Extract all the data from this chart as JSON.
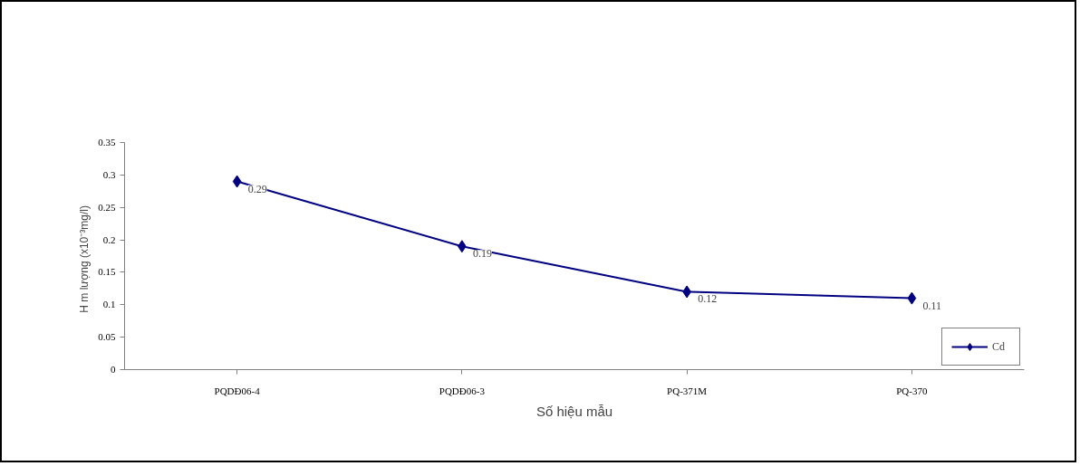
{
  "chart_data": {
    "type": "line",
    "xlabel": "Số hiệu mẫu",
    "ylabel": "H   m lượng (x10⁻³mg/l)",
    "categories": [
      "PQDĐ06-4",
      "PQDĐ06-3",
      "PQ-371M",
      "PQ-370"
    ],
    "series": [
      {
        "name": "Cd",
        "color": "#000080",
        "values": [
          0.29,
          0.19,
          0.12,
          0.11
        ]
      }
    ],
    "ylim": [
      0,
      0.35
    ],
    "yticks": [
      0,
      0.05,
      0.1,
      0.15,
      0.2,
      0.25,
      0.3,
      0.35
    ],
    "grid": false,
    "legend": "bottom right",
    "marker": "diamond",
    "line_style": "solid",
    "data_labels": true
  }
}
